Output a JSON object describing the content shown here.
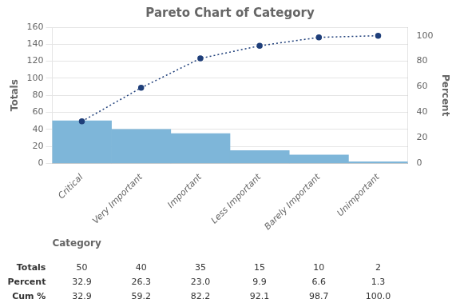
{
  "chart_data": {
    "type": "bar",
    "title": "Pareto Chart of Category",
    "xlabel": "Category",
    "ylabel": "Totals",
    "y2label": "Percent",
    "categories": [
      "Critical",
      "Very Important",
      "Important",
      "Less Important",
      "Barely Important",
      "Unimportant"
    ],
    "series": [
      {
        "type": "bar",
        "color": "#7EB6D9",
        "values": [
          50,
          40,
          35,
          15,
          10,
          2
        ]
      },
      {
        "type": "line",
        "axis": "y2",
        "color": "#1F3F7A",
        "line_style": "dotted",
        "marker": "circle",
        "values": [
          32.9,
          59.2,
          82.2,
          92.1,
          98.7,
          100.0
        ]
      }
    ],
    "ylim": [
      0,
      160
    ],
    "yticks": [
      0,
      20,
      40,
      60,
      80,
      100,
      120,
      140,
      160
    ],
    "y2lim": [
      0,
      106.67
    ],
    "y2ticks": [
      0,
      20,
      40,
      60,
      80,
      100
    ],
    "grid": true,
    "table": {
      "rows": [
        {
          "label": "Totals",
          "values": [
            "50",
            "40",
            "35",
            "15",
            "10",
            "2"
          ]
        },
        {
          "label": "Percent",
          "values": [
            "32.9",
            "26.3",
            "23.0",
            "9.9",
            "6.6",
            "1.3"
          ]
        },
        {
          "label": "Cum %",
          "values": [
            "32.9",
            "59.2",
            "82.2",
            "92.1",
            "98.7",
            "100.0"
          ]
        }
      ]
    }
  }
}
